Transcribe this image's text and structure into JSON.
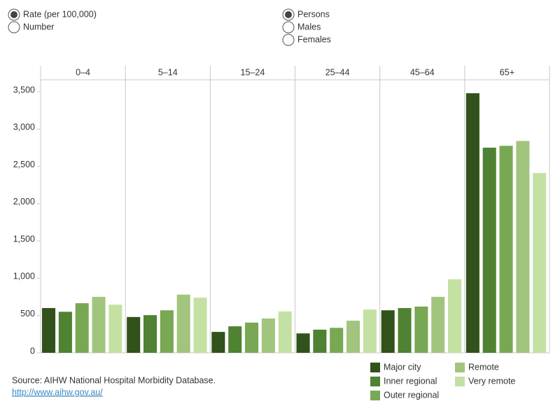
{
  "controls": {
    "measure": {
      "options": [
        "Rate (per 100,000)",
        "Number"
      ],
      "selected": 0
    },
    "sex": {
      "options": [
        "Persons",
        "Males",
        "Females"
      ],
      "selected": 0
    }
  },
  "chart_data": {
    "type": "bar",
    "categories": [
      "0–4",
      "5–14",
      "15–24",
      "25–44",
      "45–64",
      "65+"
    ],
    "series": [
      {
        "name": "Major city",
        "color": "#31521b",
        "values": [
          600,
          480,
          280,
          260,
          570,
          3480
        ]
      },
      {
        "name": "Inner regional",
        "color": "#4f8232",
        "values": [
          550,
          505,
          355,
          310,
          600,
          2750
        ]
      },
      {
        "name": "Outer regional",
        "color": "#78a854",
        "values": [
          665,
          570,
          405,
          335,
          620,
          2775
        ]
      },
      {
        "name": "Remote",
        "color": "#a2c57e",
        "values": [
          750,
          780,
          460,
          430,
          750,
          2840
        ]
      },
      {
        "name": "Very remote",
        "color": "#c4e1a4",
        "values": [
          645,
          740,
          555,
          580,
          985,
          2410
        ]
      }
    ],
    "ylim": [
      0,
      3660
    ],
    "yticks": [
      0,
      500,
      {
        "value": 1000,
        "label": "1,000"
      },
      {
        "value": 1500,
        "label": "1,500"
      },
      {
        "value": 2000,
        "label": "2,000"
      },
      {
        "value": 2500,
        "label": "2,500"
      },
      {
        "value": 3000,
        "label": "3,000"
      },
      {
        "value": 3500,
        "label": "3,500"
      }
    ]
  },
  "footer": {
    "source": "Source: AIHW National Hospital Morbidity Database.",
    "link": "http://www.aihw.gov.au/"
  }
}
